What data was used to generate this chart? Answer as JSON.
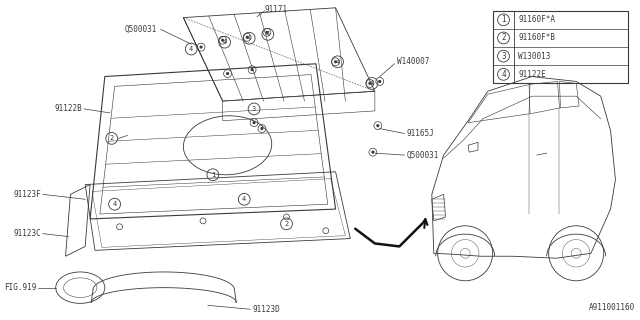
{
  "bg_color": "#ffffff",
  "line_color": "#3a3a3a",
  "doc_number": "A911001160",
  "legend": [
    {
      "num": "1",
      "code": "91160F*A"
    },
    {
      "num": "2",
      "code": "91160F*B"
    },
    {
      "num": "3",
      "code": "W130013"
    },
    {
      "num": "4",
      "code": "91122E"
    }
  ],
  "figsize": [
    6.4,
    3.2
  ],
  "dpi": 100
}
